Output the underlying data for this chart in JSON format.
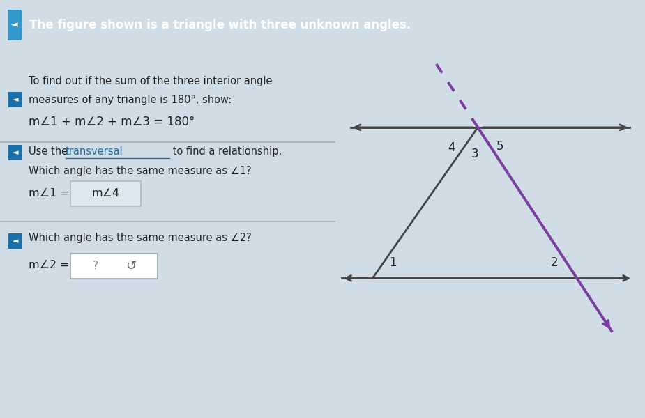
{
  "header_text": "The figure shown is a triangle with three unknown angles.",
  "header_bg": "#1a6fa8",
  "header_text_color": "#ffffff",
  "body_bg": "#d0dde6",
  "left_panel_bg": "#c5d5de",
  "section1_bullet_color": "#1a6fa8",
  "section1_text1": "To find out if the sum of the three interior angle",
  "section1_text2": "measures of any triangle is 180°, show:",
  "section1_formula": "m∠1 + m∠2 + m∠3 = 180°",
  "section2_use": "Use the ",
  "section2_transversal": "transversal",
  "section2_rest": " to find a relationship.",
  "section2_text2": "Which angle has the same measure as ∠1?",
  "section2_answer_label": "m∠1 =",
  "section2_answer": "m∠4",
  "section3_text1": "Which angle has the same measure as ∠2?",
  "section3_answer_label": "m∠2 =",
  "section3_answer": "?",
  "divider_color": "#aabbc8",
  "triangle_color": "#444444",
  "transversal_color": "#7b3fa0",
  "parallel_line_color": "#444444",
  "answer_box_bg": "#dce8f0",
  "answer_box_border": "#aabbc8",
  "underline_color": "#1a6fa8",
  "bullet_color": "#1a6fa8"
}
